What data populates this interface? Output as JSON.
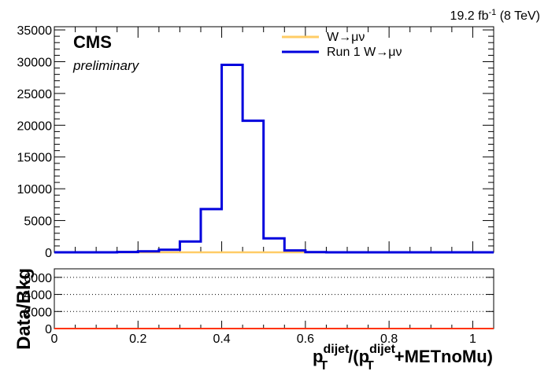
{
  "header": {
    "lumi_main": "19.2 fb",
    "lumi_sup": "-1",
    "lumi_energy": " (8 TeV)"
  },
  "labels": {
    "cms": "CMS",
    "preliminary": "preliminary",
    "ratio_ylabel": "Data/Bkg",
    "xlabel_p1": "p",
    "xlabel_sub1": "T",
    "xlabel_sup1": "dijet",
    "xlabel_p2": "/(p",
    "xlabel_sub2": "T",
    "xlabel_sup2": "dijet",
    "xlabel_p3": "+METnoMu)"
  },
  "colors": {
    "series_wmunu": "#ffcc66",
    "series_run1": "#0000dd",
    "ratio_line": "#ff3300",
    "axis": "#000000"
  },
  "chart_data": [
    {
      "type": "line",
      "name": "main-histogram",
      "ylim": [
        0,
        35500
      ],
      "xlim": [
        0,
        1.05
      ],
      "grid": false,
      "legend_position": "top-right",
      "y_ticks": [
        0,
        5000,
        10000,
        15000,
        20000,
        25000,
        30000,
        35000
      ],
      "y_tick_labels": [
        "0",
        "5000",
        "10000",
        "15000",
        "20000",
        "25000",
        "30000",
        "35000"
      ],
      "bin_edges": [
        0,
        0.05,
        0.1,
        0.15,
        0.2,
        0.25,
        0.3,
        0.35,
        0.4,
        0.45,
        0.5,
        0.55,
        0.6,
        0.65,
        0.7,
        0.75,
        0.8,
        0.85,
        0.9,
        0.95,
        1.0,
        1.05
      ],
      "series": [
        {
          "name": "W→μν",
          "color": "#ffcc66",
          "values": [
            0,
            0,
            0,
            0,
            0,
            0,
            0,
            0,
            0,
            0,
            0,
            0,
            0,
            0,
            0,
            0,
            0,
            0,
            0,
            0,
            0
          ]
        },
        {
          "name": "Run 1 W→μν",
          "color": "#0000dd",
          "values": [
            0,
            0,
            0,
            50,
            150,
            400,
            1700,
            6800,
            29500,
            20700,
            2200,
            300,
            30,
            0,
            0,
            0,
            0,
            0,
            0,
            0,
            0
          ]
        }
      ]
    },
    {
      "type": "line",
      "name": "ratio-panel",
      "ylabel": "Data/Bkg",
      "xlim": [
        0,
        1.05
      ],
      "ylim": [
        0,
        7000
      ],
      "grid": true,
      "y_ticks": [
        0,
        2000,
        4000,
        6000
      ],
      "y_tick_labels": [
        "0",
        "2000",
        "4000",
        "6000"
      ],
      "x_ticks": [
        0,
        0.2,
        0.4,
        0.6,
        0.8,
        1
      ],
      "x_tick_labels": [
        "0",
        "0.2",
        "0.4",
        "0.6",
        "0.8",
        "1"
      ],
      "series": [
        {
          "color": "#ff3300",
          "x": [
            0,
            1.05
          ],
          "values": [
            0,
            0
          ]
        }
      ]
    }
  ]
}
